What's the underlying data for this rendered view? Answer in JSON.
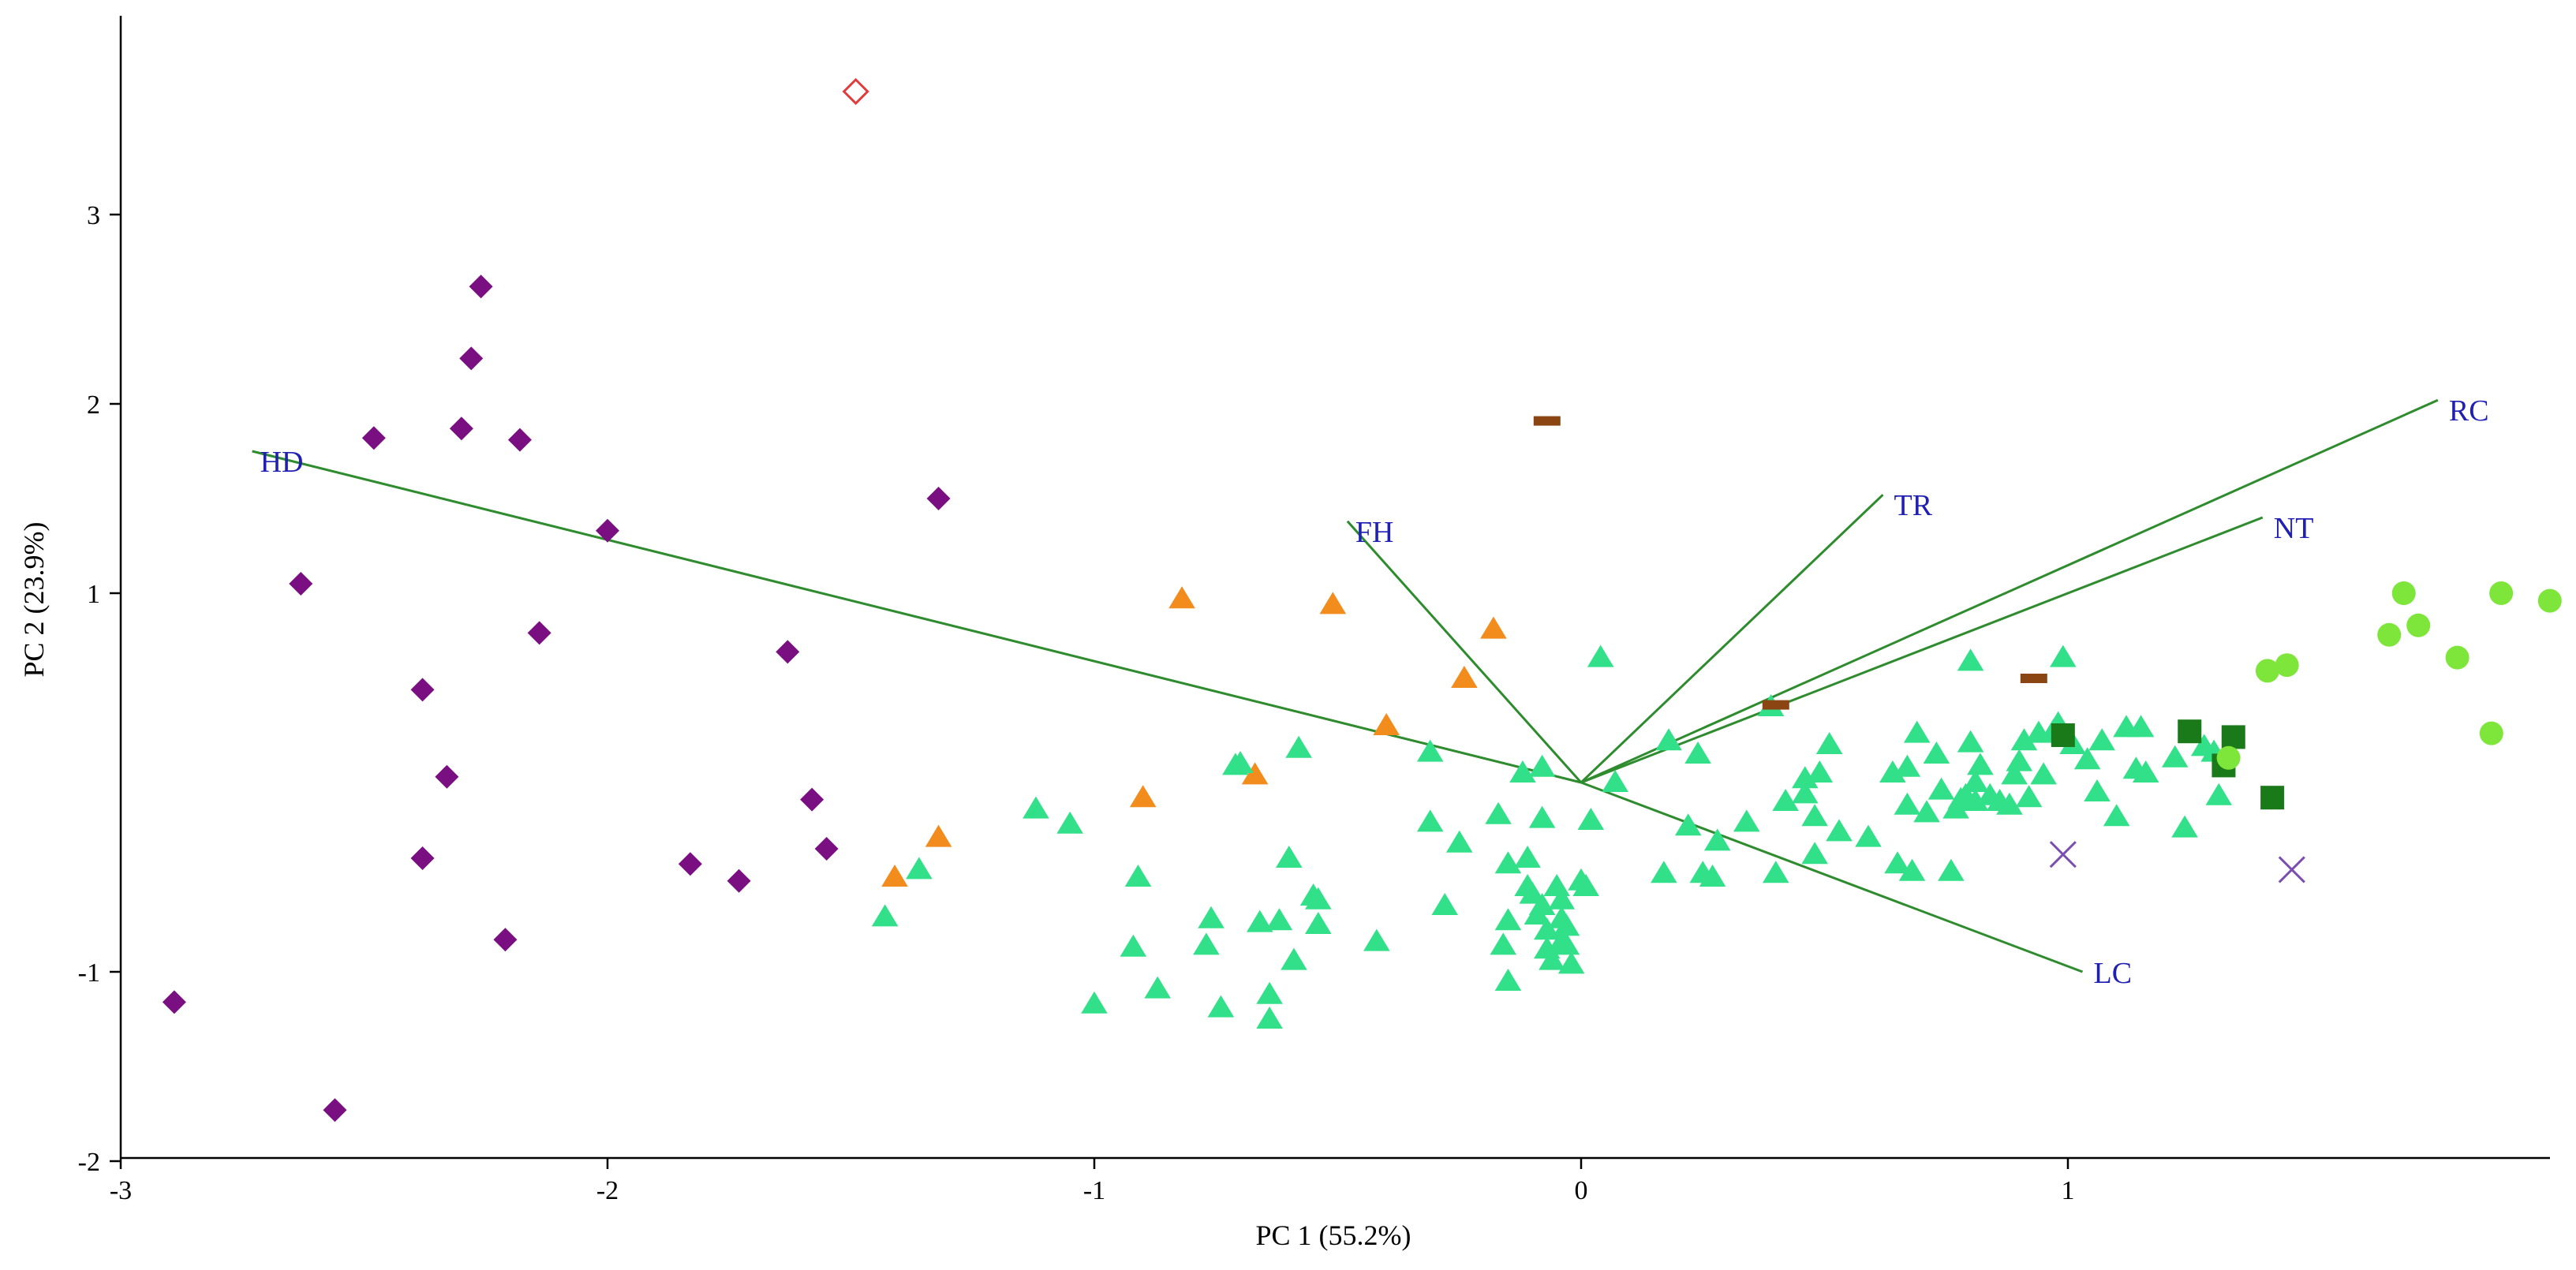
{
  "chart_data": {
    "type": "scatter",
    "subtype": "pca-biplot",
    "title": "",
    "xlabel": "PC 1 (55.2%)",
    "ylabel": "PC 2 (23.9%)",
    "xlim": [
      -3,
      2
    ],
    "ylim": [
      -2,
      4
    ],
    "x_ticks": [
      -3,
      -2,
      -1,
      0,
      1
    ],
    "y_ticks": [
      -2,
      -1,
      1,
      2,
      3
    ],
    "x_tick_labels": [
      "-3",
      "-2",
      "-1",
      "0",
      "1"
    ],
    "y_tick_labels": [
      "-2",
      "-1",
      "1",
      "2",
      "3"
    ],
    "grid": false,
    "loading_color": "#2e8b2e",
    "loading_label_color": "#1f1fb4",
    "loadings": [
      {
        "label": "HD",
        "x": -2.73,
        "y": 1.75
      },
      {
        "label": "FH",
        "x": -0.48,
        "y": 1.38
      },
      {
        "label": "TR",
        "x": 0.62,
        "y": 1.52
      },
      {
        "label": "RC",
        "x": 1.76,
        "y": 2.02
      },
      {
        "label": "NT",
        "x": 1.4,
        "y": 1.4
      },
      {
        "label": "LC",
        "x": 1.03,
        "y": -1.0
      }
    ],
    "series": [
      {
        "marker": "diamond",
        "color": "#7a0f82",
        "points": [
          [
            -2.26,
            2.62
          ],
          [
            -2.28,
            2.24
          ],
          [
            -2.48,
            1.82
          ],
          [
            -2.3,
            1.87
          ],
          [
            -2.18,
            1.81
          ],
          [
            -2.0,
            1.33
          ],
          [
            -2.63,
            1.05
          ],
          [
            -2.14,
            0.79
          ],
          [
            -1.32,
            1.5
          ],
          [
            -1.63,
            0.69
          ],
          [
            -2.38,
            0.49
          ],
          [
            -2.33,
            0.03
          ],
          [
            -2.38,
            -0.4
          ],
          [
            -1.83,
            -0.43
          ],
          [
            -1.73,
            -0.52
          ],
          [
            -1.58,
            -0.09
          ],
          [
            -1.55,
            -0.35
          ],
          [
            -2.21,
            -0.83
          ],
          [
            -2.89,
            -1.16
          ],
          [
            -2.56,
            -1.73
          ]
        ]
      },
      {
        "marker": "diamond-open",
        "color": "#e03c3c",
        "points": [
          [
            -1.49,
            3.65
          ]
        ]
      },
      {
        "marker": "triangle",
        "color": "#f28c1c",
        "points": [
          [
            -0.82,
            0.97
          ],
          [
            -0.51,
            0.94
          ],
          [
            -0.18,
            0.81
          ],
          [
            -0.24,
            0.55
          ],
          [
            -0.4,
            0.3
          ],
          [
            -0.67,
            0.04
          ],
          [
            -0.9,
            -0.08
          ],
          [
            -1.32,
            -0.29
          ],
          [
            -1.41,
            -0.5
          ]
        ]
      },
      {
        "marker": "triangle",
        "color": "#33e08a",
        "points": [
          [
            -1.36,
            -0.46
          ],
          [
            -1.43,
            -0.71
          ],
          [
            -1.12,
            -0.14
          ],
          [
            -1.05,
            -0.22
          ],
          [
            -1.0,
            -1.17
          ],
          [
            -0.91,
            -0.5
          ],
          [
            -0.92,
            -0.87
          ],
          [
            -0.87,
            -1.09
          ],
          [
            -0.77,
            -0.86
          ],
          [
            -0.76,
            -0.72
          ],
          [
            -0.74,
            -1.19
          ],
          [
            -0.71,
            0.09
          ],
          [
            -0.7,
            0.1
          ],
          [
            -0.66,
            -0.74
          ],
          [
            -0.64,
            -1.12
          ],
          [
            -0.64,
            -1.25
          ],
          [
            -0.62,
            -0.73
          ],
          [
            -0.6,
            -0.4
          ],
          [
            -0.59,
            -0.94
          ],
          [
            -0.58,
            0.18
          ],
          [
            -0.55,
            -0.6
          ],
          [
            -0.54,
            -0.62
          ],
          [
            -0.54,
            -0.75
          ],
          [
            -0.42,
            -0.84
          ],
          [
            -0.31,
            0.16
          ],
          [
            -0.31,
            -0.21
          ],
          [
            -0.28,
            -0.65
          ],
          [
            -0.25,
            -0.32
          ],
          [
            -0.17,
            -0.17
          ],
          [
            -0.15,
            -0.43
          ],
          [
            -0.16,
            -0.86
          ],
          [
            -0.15,
            -1.05
          ],
          [
            -0.15,
            -0.73
          ],
          [
            -0.12,
            0.05
          ],
          [
            -0.11,
            -0.4
          ],
          [
            -0.11,
            -0.55
          ],
          [
            -0.1,
            -0.59
          ],
          [
            -0.09,
            -0.7
          ],
          [
            -0.08,
            -0.65
          ],
          [
            -0.08,
            -0.19
          ],
          [
            -0.08,
            0.08
          ],
          [
            -0.07,
            -0.78
          ],
          [
            -0.07,
            -0.88
          ],
          [
            -0.06,
            -0.94
          ],
          [
            -0.05,
            -0.55
          ],
          [
            -0.04,
            -0.62
          ],
          [
            -0.04,
            -0.84
          ],
          [
            -0.04,
            -0.72
          ],
          [
            -0.03,
            -0.76
          ],
          [
            -0.03,
            -0.86
          ],
          [
            -0.02,
            -0.96
          ],
          [
            0.0,
            -0.52
          ],
          [
            0.01,
            -0.55
          ],
          [
            0.02,
            -0.2
          ],
          [
            0.04,
            0.66
          ],
          [
            0.07,
            0.0
          ],
          [
            0.18,
            0.22
          ],
          [
            0.17,
            -0.48
          ],
          [
            0.22,
            -0.23
          ],
          [
            0.24,
            0.15
          ],
          [
            0.25,
            -0.48
          ],
          [
            0.27,
            -0.5
          ],
          [
            0.28,
            -0.31
          ],
          [
            0.34,
            -0.21
          ],
          [
            0.4,
            -0.48
          ],
          [
            0.39,
            0.4
          ],
          [
            0.42,
            -0.1
          ],
          [
            0.46,
            -0.06
          ],
          [
            0.46,
            0.02
          ],
          [
            0.48,
            -0.38
          ],
          [
            0.48,
            -0.18
          ],
          [
            0.49,
            0.05
          ],
          [
            0.51,
            0.2
          ],
          [
            0.53,
            -0.26
          ],
          [
            0.59,
            -0.29
          ],
          [
            0.64,
            0.05
          ],
          [
            0.65,
            -0.43
          ],
          [
            0.67,
            0.08
          ],
          [
            0.67,
            -0.12
          ],
          [
            0.68,
            -0.47
          ],
          [
            0.69,
            0.26
          ],
          [
            0.71,
            -0.16
          ],
          [
            0.73,
            0.15
          ],
          [
            0.74,
            -0.04
          ],
          [
            0.76,
            -0.47
          ],
          [
            0.77,
            -0.14
          ],
          [
            0.78,
            -0.09
          ],
          [
            0.79,
            -0.07
          ],
          [
            0.8,
            0.21
          ],
          [
            0.81,
            0.0
          ],
          [
            0.81,
            -0.1
          ],
          [
            0.82,
            0.09
          ],
          [
            0.84,
            -0.07
          ],
          [
            0.86,
            -0.1
          ],
          [
            0.88,
            -0.12
          ],
          [
            0.89,
            0.04
          ],
          [
            0.9,
            0.11
          ],
          [
            0.91,
            0.22
          ],
          [
            0.92,
            -0.08
          ],
          [
            0.94,
            0.26
          ],
          [
            0.95,
            0.04
          ],
          [
            0.97,
            0.27
          ],
          [
            0.98,
            0.31
          ],
          [
            0.99,
            0.66
          ],
          [
            1.01,
            0.2
          ],
          [
            1.04,
            0.12
          ],
          [
            1.06,
            -0.05
          ],
          [
            1.07,
            0.22
          ],
          [
            1.1,
            -0.18
          ],
          [
            1.12,
            0.29
          ],
          [
            1.14,
            0.07
          ],
          [
            1.15,
            0.29
          ],
          [
            1.16,
            0.05
          ],
          [
            1.22,
            0.13
          ],
          [
            1.24,
            -0.24
          ],
          [
            1.28,
            0.19
          ],
          [
            1.3,
            0.16
          ],
          [
            1.31,
            -0.07
          ],
          [
            0.8,
            0.64
          ]
        ]
      },
      {
        "marker": "dash",
        "color": "#8b4513",
        "points": [
          [
            -0.07,
            1.91
          ],
          [
            0.4,
            0.41
          ],
          [
            0.93,
            0.55
          ]
        ]
      },
      {
        "marker": "square",
        "color": "#1a7a1a",
        "points": [
          [
            0.99,
            0.25
          ],
          [
            1.25,
            0.27
          ],
          [
            1.34,
            0.24
          ],
          [
            1.32,
            0.09
          ],
          [
            1.42,
            -0.08
          ]
        ]
      },
      {
        "marker": "circle",
        "color": "#7ee63b",
        "points": [
          [
            1.33,
            0.13
          ],
          [
            1.41,
            0.59
          ],
          [
            1.45,
            0.62
          ],
          [
            1.66,
            0.78
          ],
          [
            1.69,
            1.0
          ],
          [
            1.72,
            0.83
          ],
          [
            1.8,
            0.66
          ],
          [
            1.87,
            0.26
          ],
          [
            1.89,
            1.0
          ],
          [
            1.99,
            0.96
          ]
        ]
      },
      {
        "marker": "cross",
        "color": "#7a4fb0",
        "points": [
          [
            0.99,
            -0.38
          ],
          [
            1.46,
            -0.46
          ]
        ]
      }
    ]
  }
}
